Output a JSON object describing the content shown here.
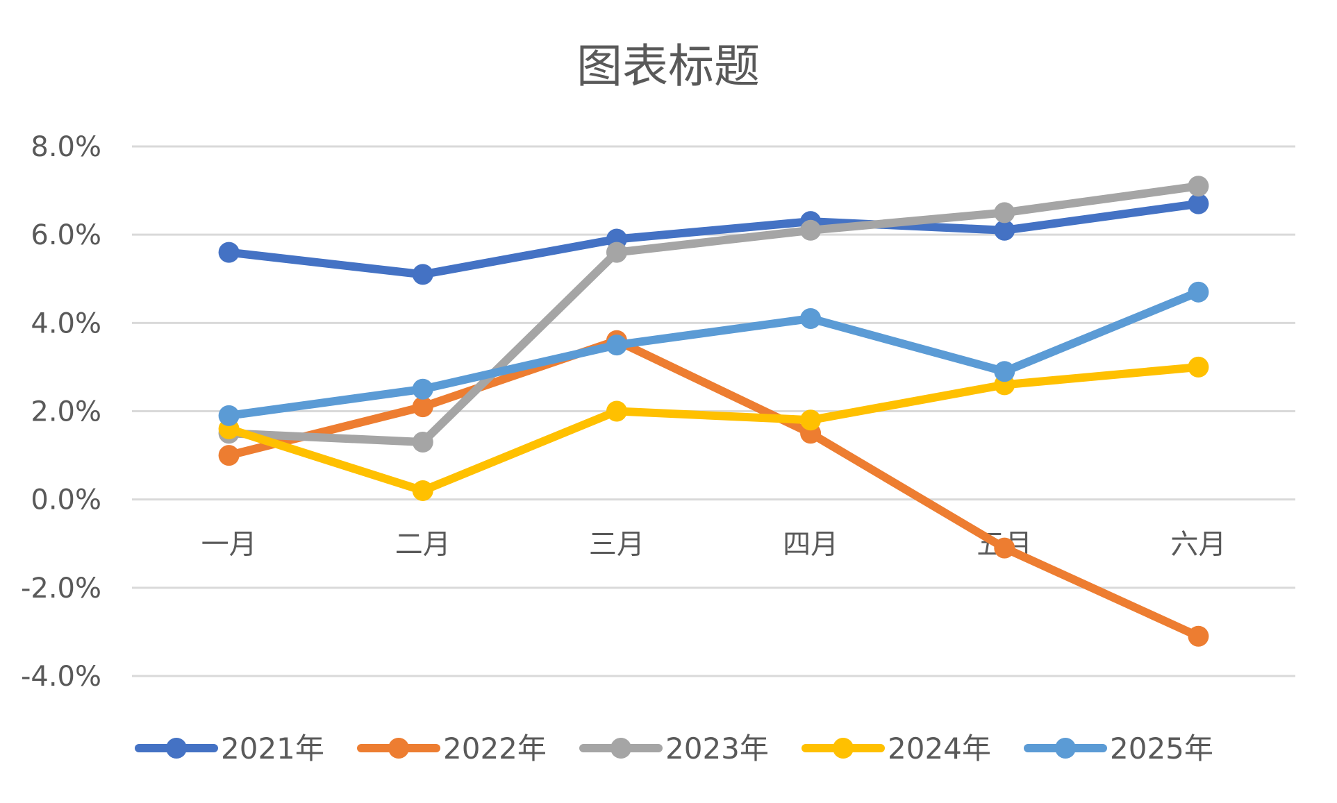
{
  "chart_data": {
    "type": "line",
    "title": "图表标题",
    "categories": [
      "一月",
      "二月",
      "三月",
      "四月",
      "五月",
      "六月"
    ],
    "y_ticks": [
      "-4.0%",
      "-2.0%",
      "0.0%",
      "2.0%",
      "4.0%",
      "6.0%",
      "8.0%"
    ],
    "ylim": [
      -4.0,
      8.0
    ],
    "y_unit": "%",
    "grid": true,
    "legend_position": "bottom",
    "series": [
      {
        "name": "2021年",
        "color": "#4472C4",
        "values": [
          5.6,
          5.1,
          5.9,
          6.3,
          6.1,
          6.7
        ]
      },
      {
        "name": "2022年",
        "color": "#ED7D31",
        "values": [
          1.0,
          2.1,
          3.6,
          1.5,
          -1.1,
          -3.1
        ]
      },
      {
        "name": "2023年",
        "color": "#A5A5A5",
        "values": [
          1.5,
          1.3,
          5.6,
          6.1,
          6.5,
          7.1
        ]
      },
      {
        "name": "2024年",
        "color": "#FFC000",
        "values": [
          1.6,
          0.2,
          2.0,
          1.8,
          2.6,
          3.0
        ]
      },
      {
        "name": "2025年",
        "color": "#5B9BD5",
        "values": [
          1.9,
          2.5,
          3.5,
          4.1,
          2.9,
          4.7
        ]
      }
    ]
  }
}
